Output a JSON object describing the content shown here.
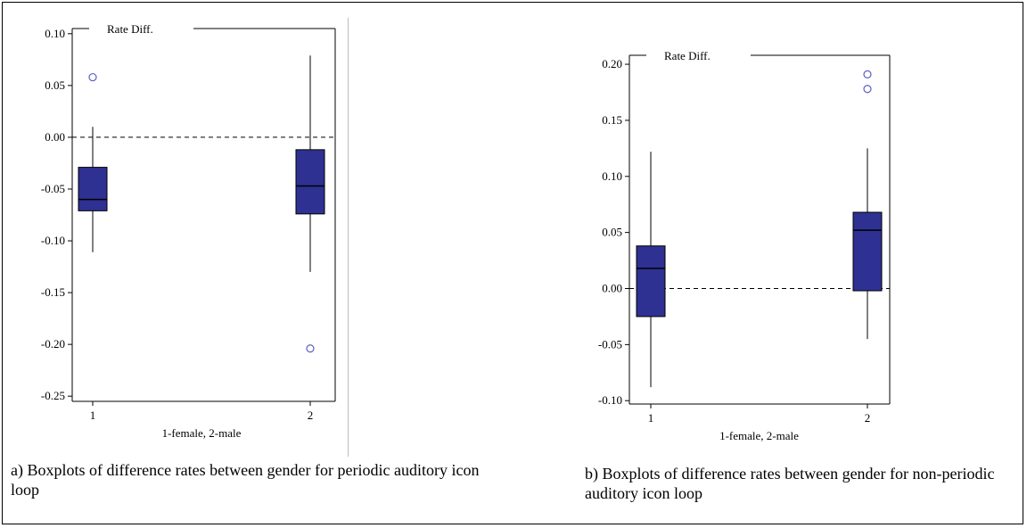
{
  "chart_data": [
    {
      "type": "boxplot",
      "legend_label": "Rate Diff.",
      "xlabel": "1-female, 2-male",
      "categories": [
        "1",
        "2"
      ],
      "ylim": [
        -0.255,
        0.105
      ],
      "yticks": [
        "0.10",
        "0.05",
        "0.00",
        "-0.05",
        "-0.10",
        "-0.15",
        "-0.20",
        "-0.25"
      ],
      "ytick_values": [
        0.1,
        0.05,
        0.0,
        -0.05,
        -0.1,
        -0.15,
        -0.2,
        -0.25
      ],
      "reference_line": 0.0,
      "boxes": [
        {
          "category": "1",
          "whisker_low": -0.111,
          "q1": -0.071,
          "median": -0.06,
          "q3": -0.029,
          "whisker_high": 0.01,
          "outliers": [
            0.058
          ]
        },
        {
          "category": "2",
          "whisker_low": -0.13,
          "q1": -0.074,
          "median": -0.047,
          "q3": -0.012,
          "whisker_high": 0.079,
          "outliers": [
            -0.204
          ]
        }
      ],
      "box_color": "#2e3192",
      "outlier_color": "#5b5fc7"
    },
    {
      "type": "boxplot",
      "legend_label": "Rate Diff.",
      "xlabel": "1-female, 2-male",
      "categories": [
        "1",
        "2"
      ],
      "ylim": [
        -0.103,
        0.208
      ],
      "yticks": [
        "0.20",
        "0.15",
        "0.10",
        "0.05",
        "0.00",
        "-0.05",
        "-0.10"
      ],
      "ytick_values": [
        0.2,
        0.15,
        0.1,
        0.05,
        0.0,
        -0.05,
        -0.1
      ],
      "reference_line": 0.0,
      "boxes": [
        {
          "category": "1",
          "whisker_low": -0.088,
          "q1": -0.025,
          "median": 0.018,
          "q3": 0.038,
          "whisker_high": 0.122,
          "outliers": []
        },
        {
          "category": "2",
          "whisker_low": -0.045,
          "q1": -0.002,
          "median": 0.052,
          "q3": 0.068,
          "whisker_high": 0.125,
          "outliers": [
            0.178,
            0.191
          ]
        }
      ],
      "box_color": "#2e3192",
      "outlier_color": "#5b5fc7"
    }
  ],
  "captions": {
    "a": "a) Boxplots of difference rates between gender for periodic auditory icon loop",
    "b": "b) Boxplots of difference rates between gender for non-periodic auditory icon loop"
  }
}
